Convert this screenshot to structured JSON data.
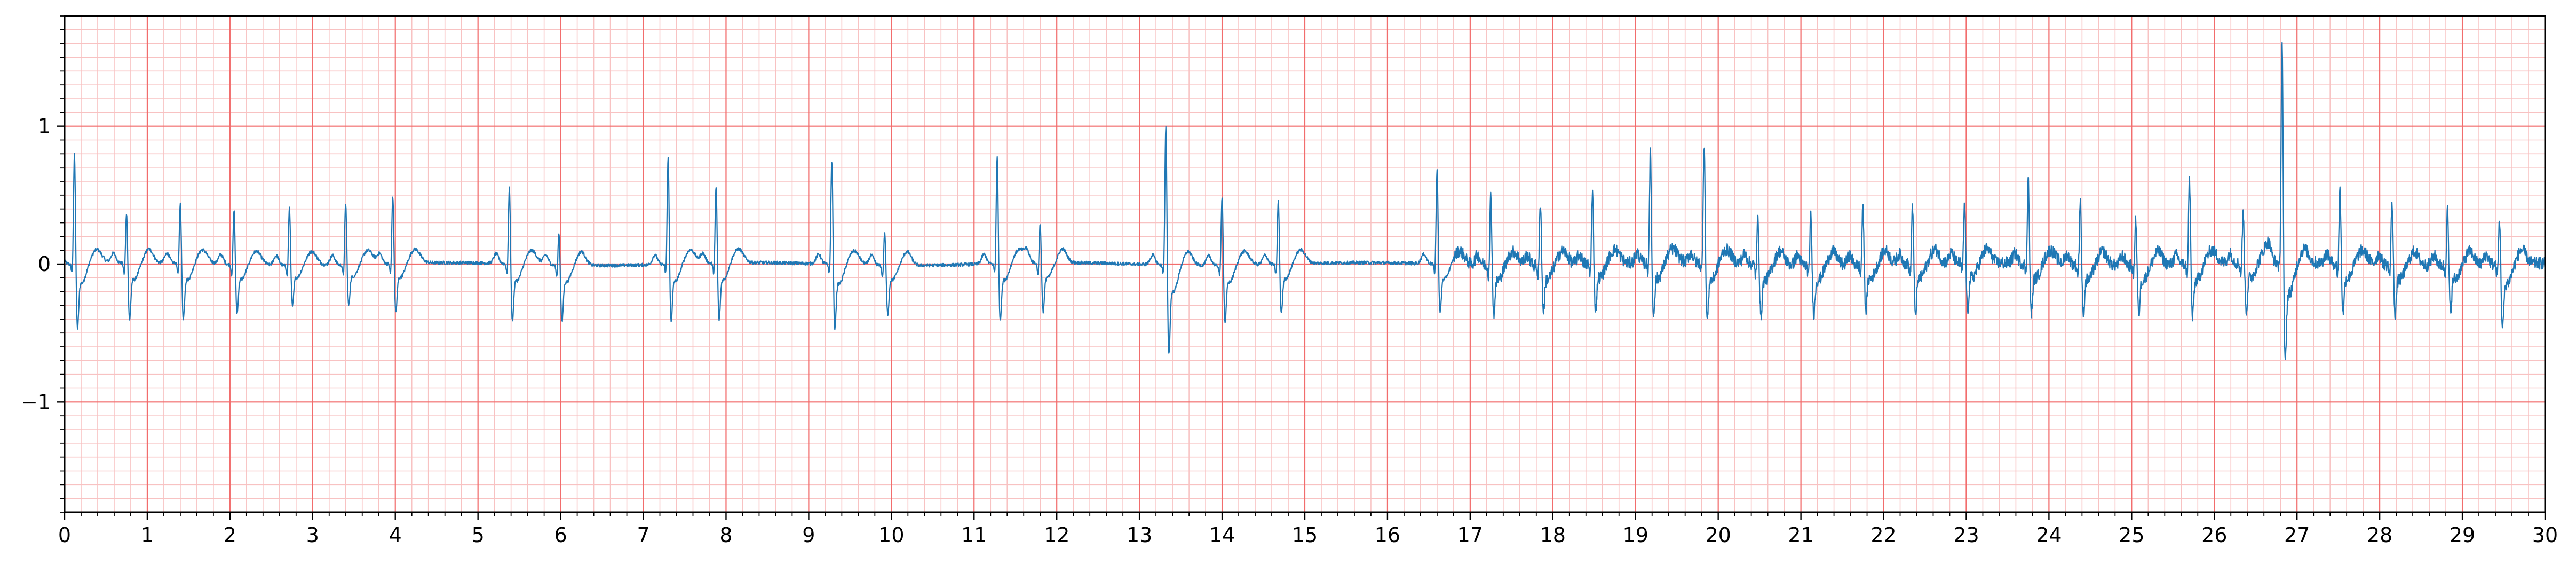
{
  "chart_data": {
    "type": "line",
    "title": "",
    "xlabel": "",
    "ylabel": "",
    "xlim": [
      0,
      30
    ],
    "ylim": [
      -1.8,
      1.8
    ],
    "grid": true,
    "grid_style": "ECG paper: major grid every 1 s / 1 unit, minor grid every 0.2 s / 0.1 unit",
    "x_ticks": [
      "0",
      "1",
      "2",
      "3",
      "4",
      "5",
      "6",
      "7",
      "8",
      "9",
      "10",
      "11",
      "12",
      "13",
      "14",
      "15",
      "16",
      "17",
      "18",
      "19",
      "20",
      "21",
      "22",
      "23",
      "24",
      "25",
      "26",
      "27",
      "28",
      "29",
      "30"
    ],
    "y_ticks": [
      "1",
      "0",
      "−1"
    ],
    "y_tick_values": [
      1,
      0,
      -1
    ],
    "colors": {
      "trace": "#1f77b4",
      "major_grid": "#f26d6d",
      "minor_grid": "#f8c2c2"
    },
    "series": [
      {
        "beats": [
          {
            "t": 0.12,
            "r": 0.85,
            "s": -0.4,
            "tw": 0.06
          },
          {
            "t": 0.75,
            "r": 0.4,
            "s": -0.35,
            "tw": 0.05
          },
          {
            "t": 1.4,
            "r": 0.48,
            "s": -0.34,
            "tw": 0.06
          },
          {
            "t": 2.05,
            "r": 0.44,
            "s": -0.3,
            "tw": 0.06
          },
          {
            "t": 2.72,
            "r": 0.45,
            "s": -0.25,
            "tw": 0.06
          },
          {
            "t": 3.4,
            "r": 0.48,
            "s": -0.25,
            "tw": 0.06
          },
          {
            "t": 3.97,
            "r": 0.53,
            "s": -0.3,
            "tw": 0.06
          },
          {
            "t": 5.38,
            "r": 0.6,
            "s": -0.35,
            "tw": 0.06
          },
          {
            "t": 5.98,
            "r": 0.28,
            "s": -0.35,
            "tw": 0.05
          },
          {
            "t": 7.3,
            "r": 0.82,
            "s": -0.35,
            "tw": 0.06
          },
          {
            "t": 7.88,
            "r": 0.6,
            "s": -0.35,
            "tw": 0.06
          },
          {
            "t": 9.28,
            "r": 0.8,
            "s": -0.4,
            "tw": 0.06
          },
          {
            "t": 9.92,
            "r": 0.28,
            "s": -0.3,
            "tw": 0.05
          },
          {
            "t": 11.28,
            "r": 0.82,
            "s": -0.35,
            "tw": 0.06
          },
          {
            "t": 11.8,
            "r": 0.32,
            "s": -0.3,
            "tw": 0.05
          },
          {
            "t": 13.32,
            "r": 1.07,
            "s": -0.55,
            "tw": 0.05
          },
          {
            "t": 14.0,
            "r": 0.55,
            "s": -0.35,
            "tw": 0.06
          },
          {
            "t": 14.68,
            "r": 0.5,
            "s": -0.3,
            "tw": 0.06
          },
          {
            "t": 16.6,
            "r": 0.72,
            "s": -0.3,
            "tw": 0.06
          },
          {
            "t": 17.25,
            "r": 0.55,
            "s": -0.3,
            "tw": 0.06
          },
          {
            "t": 17.85,
            "r": 0.5,
            "s": -0.28,
            "tw": 0.06
          },
          {
            "t": 18.48,
            "r": 0.55,
            "s": -0.28,
            "tw": 0.06
          },
          {
            "t": 19.18,
            "r": 0.84,
            "s": -0.32,
            "tw": 0.06
          },
          {
            "t": 19.83,
            "r": 0.92,
            "s": -0.35,
            "tw": 0.06
          },
          {
            "t": 20.48,
            "r": 0.38,
            "s": -0.32,
            "tw": 0.05
          },
          {
            "t": 21.12,
            "r": 0.4,
            "s": -0.3,
            "tw": 0.05
          },
          {
            "t": 21.75,
            "r": 0.45,
            "s": -0.28,
            "tw": 0.05
          },
          {
            "t": 22.35,
            "r": 0.46,
            "s": -0.3,
            "tw": 0.05
          },
          {
            "t": 22.98,
            "r": 0.47,
            "s": -0.3,
            "tw": 0.05
          },
          {
            "t": 23.75,
            "r": 0.66,
            "s": -0.3,
            "tw": 0.06
          },
          {
            "t": 24.38,
            "r": 0.52,
            "s": -0.3,
            "tw": 0.05
          },
          {
            "t": 25.05,
            "r": 0.38,
            "s": -0.3,
            "tw": 0.05
          },
          {
            "t": 25.7,
            "r": 0.66,
            "s": -0.33,
            "tw": 0.06
          },
          {
            "t": 26.35,
            "r": 0.4,
            "s": -0.3,
            "tw": 0.05
          },
          {
            "t": 26.82,
            "r": 1.7,
            "s": -0.62,
            "tw": 0.05
          },
          {
            "t": 27.52,
            "r": 0.57,
            "s": -0.3,
            "tw": 0.06
          },
          {
            "t": 28.15,
            "r": 0.5,
            "s": -0.3,
            "tw": 0.05
          },
          {
            "t": 28.82,
            "r": 0.44,
            "s": -0.28,
            "tw": 0.05
          },
          {
            "t": 29.45,
            "r": 0.38,
            "s": -0.4,
            "tw": 0.05
          }
        ]
      }
    ]
  }
}
